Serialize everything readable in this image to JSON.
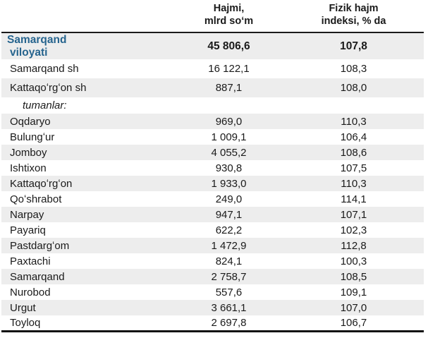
{
  "table": {
    "columns": {
      "name": "",
      "hajmi": "Hajmi,\nmlrd soʻm",
      "indeks": "Fizik hajm\nindeksi, % da"
    },
    "rows": [
      {
        "name": "Samarqand viloyati",
        "hajmi": "45 806,6",
        "indeks": "107,8"
      },
      {
        "name": "Samarqand sh",
        "hajmi": "16 122,1",
        "indeks": "108,3"
      },
      {
        "name": "Kattaqoʻrgʻon sh",
        "hajmi": "887,1",
        "indeks": "108,0"
      },
      {
        "name": "tumanlar:",
        "hajmi": "",
        "indeks": ""
      },
      {
        "name": "Oqdaryo",
        "hajmi": "969,0",
        "indeks": "110,3"
      },
      {
        "name": "Bulungʻur",
        "hajmi": "1 009,1",
        "indeks": "106,4"
      },
      {
        "name": "Jomboy",
        "hajmi": "4 055,2",
        "indeks": "108,6"
      },
      {
        "name": "Ishtixon",
        "hajmi": "930,8",
        "indeks": "107,5"
      },
      {
        "name": "Kattaqoʻrgʻon",
        "hajmi": "1 933,0",
        "indeks": "110,3"
      },
      {
        "name": "Qoʻshrabot",
        "hajmi": "249,0",
        "indeks": "114,1"
      },
      {
        "name": "Narpay",
        "hajmi": "947,1",
        "indeks": "107,1"
      },
      {
        "name": "Payariq",
        "hajmi": "622,2",
        "indeks": "102,3"
      },
      {
        "name": "Pastdargʻom",
        "hajmi": "1 472,9",
        "indeks": "112,8"
      },
      {
        "name": "Paxtachi",
        "hajmi": "824,1",
        "indeks": "100,3"
      },
      {
        "name": "Samarqand",
        "hajmi": "2 758,7",
        "indeks": "108,5"
      },
      {
        "name": "Nurobod",
        "hajmi": "557,6",
        "indeks": "109,1"
      },
      {
        "name": "Urgut",
        "hajmi": "3 661,1",
        "indeks": "107,0"
      },
      {
        "name": "Toyloq",
        "hajmi": "2 697,8",
        "indeks": "106,7"
      }
    ],
    "colors": {
      "region_text": "#26648e",
      "stripe": "#ededed",
      "rule": "#1a1a1a"
    }
  }
}
